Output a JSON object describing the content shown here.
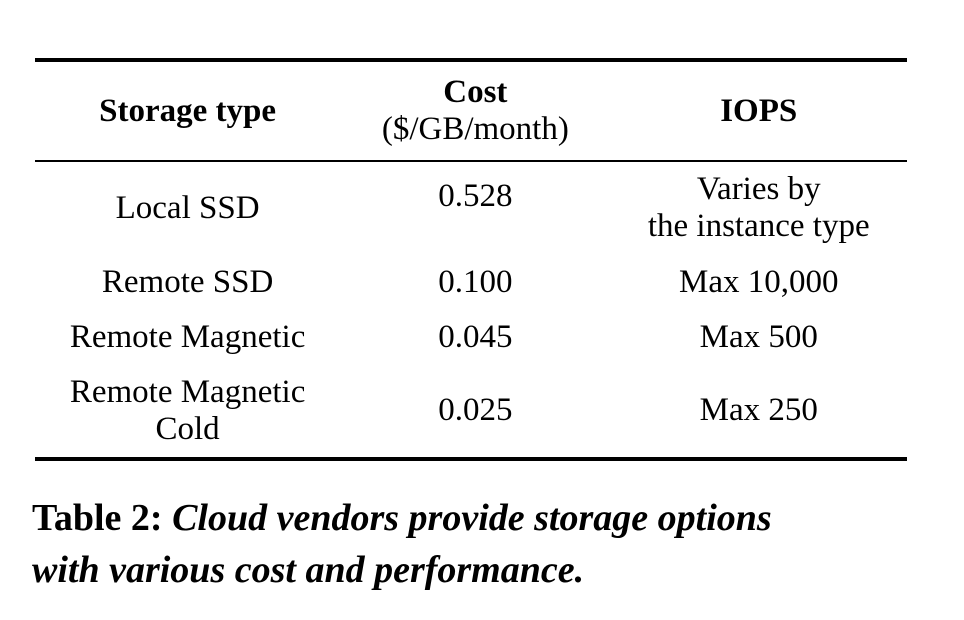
{
  "table": {
    "header": {
      "storage_type": "Storage type",
      "cost": "Cost",
      "cost_unit": "($/GB/month)",
      "iops": "IOPS"
    },
    "rows": [
      {
        "name1": "Local SSD",
        "name2": "",
        "cost": "0.528",
        "iops1": "Varies by",
        "iops2": "the instance type"
      },
      {
        "name1": "Remote SSD",
        "name2": "",
        "cost": "0.100",
        "iops1": "Max 10,000",
        "iops2": ""
      },
      {
        "name1": "Remote Magnetic",
        "name2": "",
        "cost": "0.045",
        "iops1": "Max 500",
        "iops2": ""
      },
      {
        "name1": "Remote Magnetic",
        "name2": "Cold",
        "cost": "0.025",
        "iops1": "Max 250",
        "iops2": ""
      }
    ]
  },
  "caption": {
    "label": "Table 2:",
    "line1": "Cloud vendors provide storage options",
    "line2": "with various cost and performance."
  },
  "colors": {
    "text": "#000000",
    "background": "#ffffff",
    "rule": "#000000"
  }
}
